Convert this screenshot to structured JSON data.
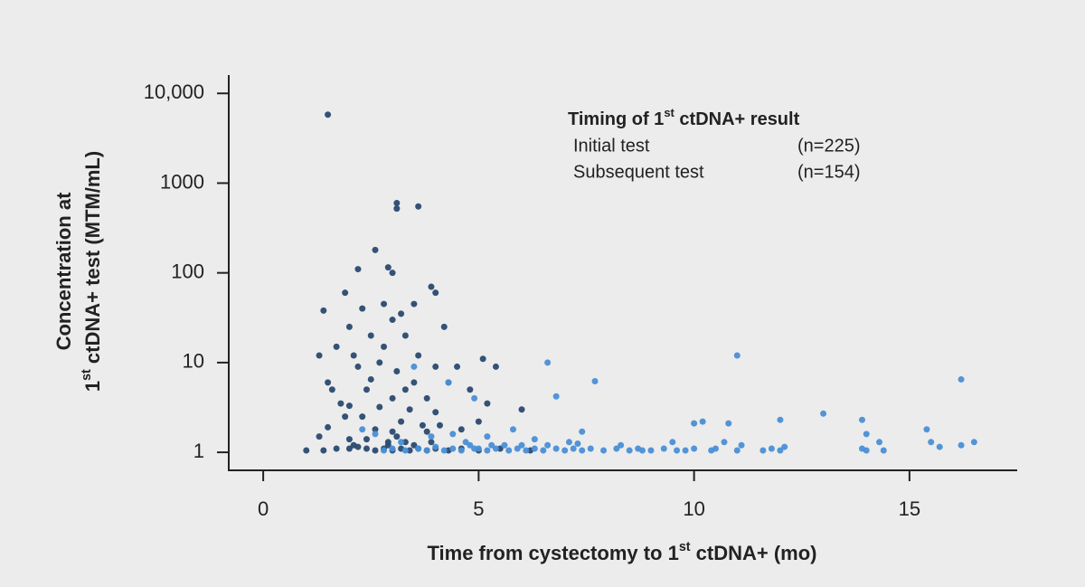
{
  "chart_data": {
    "type": "scatter",
    "log_y": true,
    "x_title": [
      "Time from cystectomy to 1",
      "st",
      " ctDNA+ (mo)"
    ],
    "y_title": [
      [
        "Concentration at"
      ],
      [
        "1",
        "st",
        " ctDNA+ test (MTM/mL)"
      ]
    ],
    "legend_title": [
      "Timing of 1",
      "st",
      " ctDNA+ result"
    ],
    "xlim": [
      -0.8,
      17.5
    ],
    "xticks": [
      0,
      5,
      10,
      15
    ],
    "ylim": [
      0.63,
      16000
    ],
    "yticks": [
      1,
      10,
      100,
      1000,
      {
        "value": 10000,
        "label": "10,000"
      }
    ],
    "series": [
      {
        "name": "Initial test",
        "n_label": "(n=225)",
        "color": "#2a4a70",
        "x": [
          1.5,
          3.1,
          3.1,
          3.6,
          2.6,
          2.9,
          3.0,
          2.2,
          3.9,
          4.0,
          1.9,
          2.8,
          3.5,
          1.4,
          2.3,
          3.2,
          3.0,
          4.2,
          2.0,
          2.5,
          3.3,
          1.3,
          1.7,
          2.8,
          3.6,
          5.1,
          4.0,
          2.2,
          4.5,
          5.4,
          2.7,
          3.1,
          1.5,
          1.6,
          3.5,
          4.3,
          4.8,
          2.4,
          3.0,
          1.8,
          2.0,
          2.7,
          3.4,
          4.0,
          5.2,
          6.0,
          1.9,
          2.3,
          3.2,
          3.7,
          4.1,
          5.0,
          1.5,
          2.6,
          3.0,
          3.8,
          4.6,
          1.3,
          2.0,
          2.4,
          2.9,
          3.3,
          3.9,
          1.0,
          1.7,
          2.0,
          2.2,
          2.4,
          2.6,
          2.8,
          3.0,
          3.2,
          3.4,
          3.6,
          3.8,
          4.0,
          4.3,
          4.6,
          5.0,
          5.5,
          6.2,
          2.1,
          2.9,
          3.5,
          1.4,
          3.1,
          2.5,
          3.8,
          2.1,
          3.3
        ],
        "values": [
          5800,
          600,
          520,
          550,
          180,
          115,
          100,
          110,
          70,
          60,
          60,
          45,
          45,
          38,
          40,
          35,
          30,
          25,
          25,
          20,
          20,
          12,
          15,
          15,
          12,
          11,
          9,
          9,
          9,
          9,
          10,
          8,
          6,
          5,
          6,
          6,
          5,
          5,
          4,
          3.5,
          3.3,
          3.2,
          3,
          2.8,
          3.5,
          3,
          2.5,
          2.5,
          2.2,
          2,
          2,
          2.2,
          1.9,
          1.8,
          1.7,
          1.7,
          1.8,
          1.5,
          1.4,
          1.4,
          1.3,
          1.3,
          1.3,
          1.05,
          1.1,
          1.1,
          1.15,
          1.1,
          1.05,
          1.1,
          1.05,
          1.1,
          1.05,
          1.1,
          1.05,
          1.1,
          1.05,
          1.1,
          1.05,
          1.1,
          1.05,
          1.2,
          1.2,
          1.2,
          1.05,
          1.5,
          6.5,
          4,
          12,
          5
        ]
      },
      {
        "name": "Subsequent test",
        "n_label": "(n=154)",
        "color": "#4a8fd6",
        "x": [
          11.0,
          6.6,
          16.2,
          7.7,
          3.5,
          4.3,
          6.8,
          4.9,
          13.0,
          10.0,
          10.2,
          10.8,
          12.0,
          13.9,
          5.8,
          7.4,
          15.4,
          16.5,
          14.3,
          14.0,
          15.5,
          9.5,
          8.3,
          7.1,
          6.3,
          5.2,
          4.4,
          3.9,
          2.6,
          2.3,
          3.2,
          4.7,
          5.6,
          6.6,
          7.3,
          10.7,
          11.1,
          12.1,
          16.2,
          15.7,
          14.4,
          13.9,
          11.6,
          11.8,
          10.5,
          10.4,
          10.0,
          9.6,
          9.3,
          9.0,
          8.7,
          8.5,
          8.2,
          7.9,
          7.6,
          7.4,
          7.2,
          7.0,
          6.8,
          6.5,
          6.3,
          6.1,
          5.9,
          5.7,
          5.4,
          5.2,
          4.9,
          4.6,
          4.4,
          4.2,
          4.0,
          3.8,
          3.6,
          3.3,
          3.0,
          2.8,
          4.8,
          5.0,
          5.3,
          6.0,
          8.8,
          9.8,
          11.0,
          12.0,
          14.0
        ],
        "values": [
          12,
          10,
          6.5,
          6.2,
          9,
          6,
          4.2,
          4,
          2.7,
          2.1,
          2.2,
          2.1,
          2.3,
          2.3,
          1.8,
          1.7,
          1.8,
          1.3,
          1.3,
          1.6,
          1.3,
          1.3,
          1.2,
          1.3,
          1.4,
          1.5,
          1.6,
          1.5,
          1.6,
          1.8,
          1.3,
          1.3,
          1.2,
          1.2,
          1.25,
          1.3,
          1.2,
          1.15,
          1.2,
          1.15,
          1.05,
          1.1,
          1.05,
          1.1,
          1.1,
          1.05,
          1.1,
          1.05,
          1.1,
          1.05,
          1.1,
          1.05,
          1.1,
          1.05,
          1.1,
          1.05,
          1.1,
          1.05,
          1.1,
          1.05,
          1.1,
          1.05,
          1.1,
          1.05,
          1.1,
          1.05,
          1.1,
          1.05,
          1.1,
          1.05,
          1.15,
          1.05,
          1.1,
          1.05,
          1.1,
          1.05,
          1.2,
          1.1,
          1.2,
          1.2,
          1.05,
          1.05,
          1.05,
          1.05,
          1.05
        ]
      }
    ]
  }
}
